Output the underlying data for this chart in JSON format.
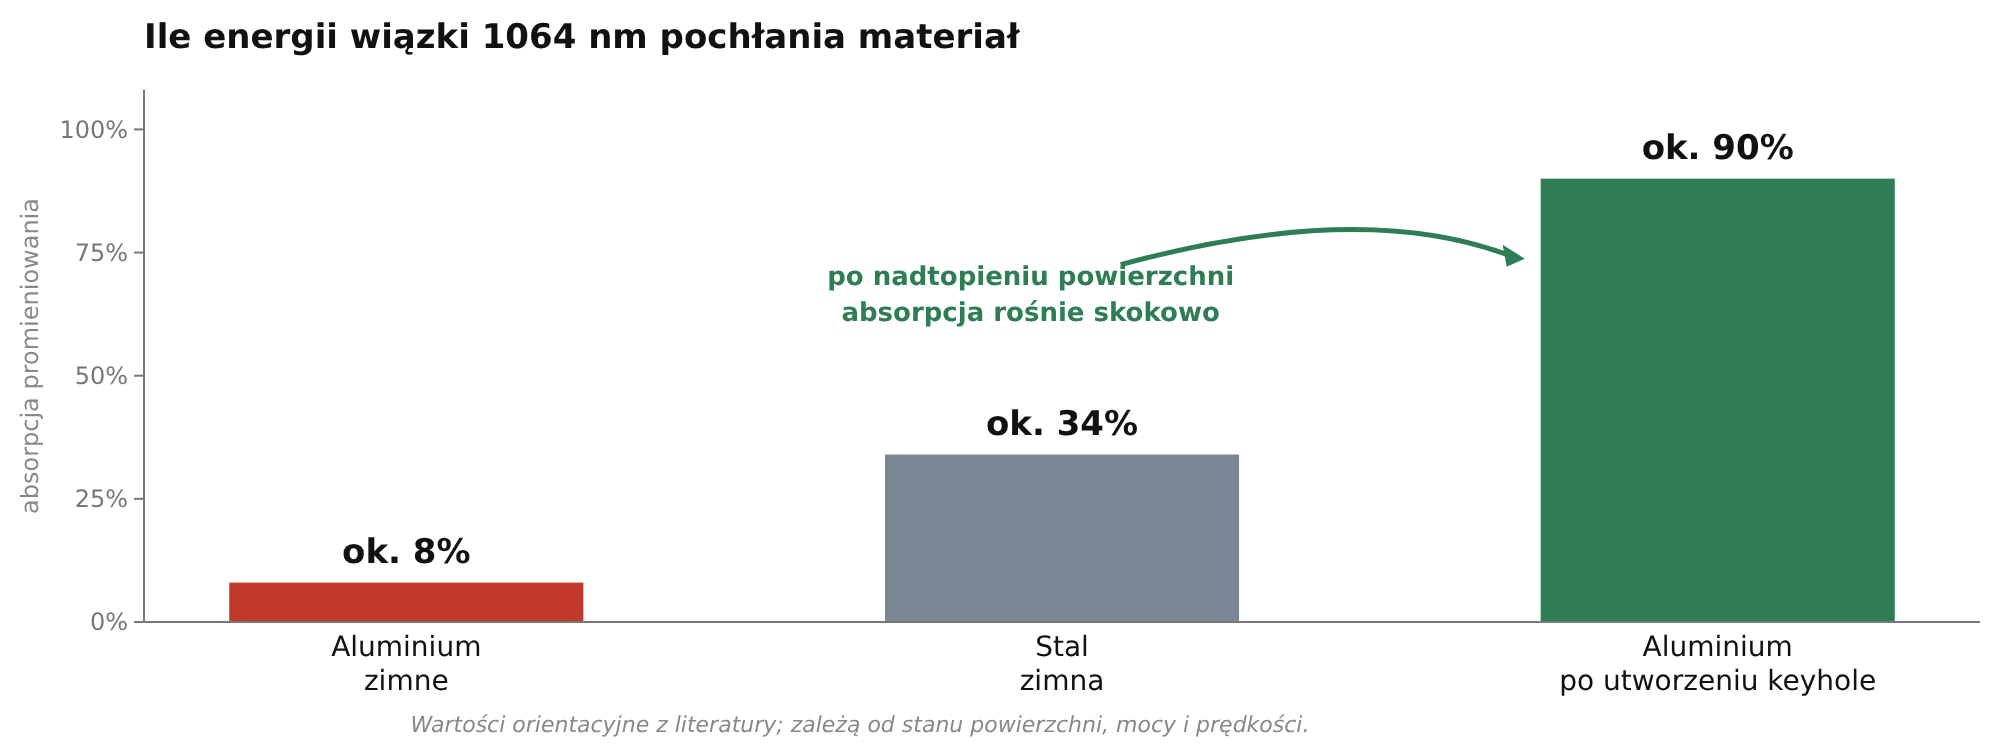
{
  "chart_data": {
    "type": "bar",
    "title": "Ile energii wiązki 1064 nm pochłania materiał",
    "ylabel": "absorpcja promieniowania",
    "categories": [
      "Aluminium\nzimne",
      "Stal\nzimna",
      "Aluminium\npo utworzeniu keyhole"
    ],
    "values": [
      8,
      34,
      90
    ],
    "colors": [
      "#c0392b",
      "#7b8794",
      "#2e7d54"
    ],
    "value_labels": [
      "ok. 8%",
      "ok. 34%",
      "ok. 90%"
    ],
    "ylim": [
      0,
      108
    ],
    "yticks": [
      {
        "value": 0,
        "label": "0%"
      },
      {
        "value": 25,
        "label": "25%"
      },
      {
        "value": 50,
        "label": "50%"
      },
      {
        "value": 75,
        "label": "75%"
      },
      {
        "value": 100,
        "label": "100%"
      }
    ],
    "annotations": [
      "po nadtopieniu powierzchni\nabsorpcja rośnie skokowo",
      "Wartości orientacyjne z literatury; zależą od stanu powierzchni, mocy i prędkości."
    ]
  }
}
